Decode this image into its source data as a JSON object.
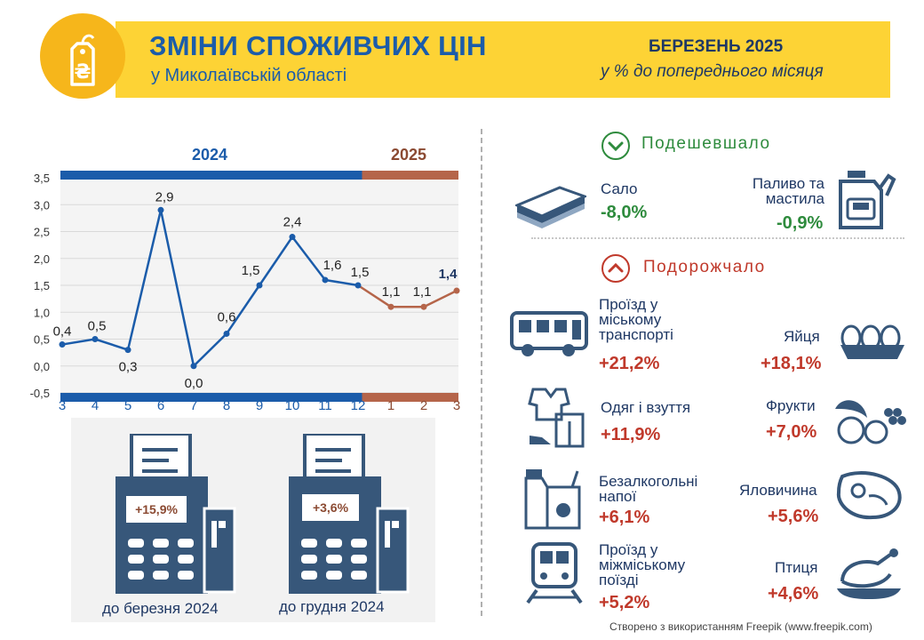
{
  "header": {
    "title": "ЗМІНИ СПОЖИВЧИХ ЦІН",
    "subtitle": "у Миколаївській області",
    "period": "БЕРЕЗЕНЬ 2025",
    "period_sub": "у % до попереднього місяця",
    "icon": "hryvnia-price-tag-icon",
    "colors": {
      "banner": "#fdd335",
      "circle": "#f6b61b",
      "primary": "#1b5caa"
    }
  },
  "chart_data": {
    "type": "line",
    "year_labels": [
      "2024",
      "2025"
    ],
    "categories": [
      "3",
      "4",
      "5",
      "6",
      "7",
      "8",
      "9",
      "10",
      "11",
      "12",
      "1",
      "2",
      "3"
    ],
    "values": [
      0.4,
      0.5,
      0.3,
      2.9,
      0.0,
      0.6,
      1.5,
      2.4,
      1.6,
      1.5,
      1.1,
      1.1,
      1.4
    ],
    "data_labels": [
      "0,4",
      "0,5",
      "0,3",
      "2,9",
      "0,0",
      "0,6",
      "1,5",
      "2,4",
      "1,6",
      "1,5",
      "1,1",
      "1,1",
      "1,4"
    ],
    "series": [
      {
        "values_index_range": [
          0,
          9
        ],
        "color": "#1b5caa"
      },
      {
        "values_index_range": [
          9,
          12
        ],
        "color": "#b5654a"
      }
    ],
    "y_ticks": [
      "-0,5",
      "0,0",
      "0,5",
      "1,0",
      "1,5",
      "2,0",
      "2,5",
      "3,0",
      "3,5"
    ],
    "ylim": [
      -0.5,
      3.5
    ],
    "grid": true
  },
  "terminals": [
    {
      "value": "+15,9%",
      "label": "до березня 2024",
      "icon": "pos-terminal-icon"
    },
    {
      "value": "+3,6%",
      "label": "до грудня 2024",
      "icon": "pos-terminal-icon"
    }
  ],
  "cheaper": {
    "title": "Подешевшало",
    "icon": "chevron-down-icon",
    "items": [
      {
        "name": "Сало",
        "value": "-8,0%",
        "icon": "lard-icon"
      },
      {
        "name_lines": [
          "Паливо та",
          "мастила"
        ],
        "value": "-0,9%",
        "icon": "fuel-canister-icon"
      }
    ]
  },
  "pricier": {
    "title": "Подорожчало",
    "icon": "chevron-up-icon",
    "items": [
      {
        "name_lines": [
          "Проїзд у",
          "міському",
          "транспорті"
        ],
        "value": "+21,2%",
        "icon": "bus-icon"
      },
      {
        "name": "Яйця",
        "value": "+18,1%",
        "icon": "eggs-icon"
      },
      {
        "name": "Одяг і взуття",
        "value": "+11,9%",
        "icon": "clothes-icon"
      },
      {
        "name": "Фрукти",
        "value": "+7,0%",
        "icon": "fruits-icon"
      },
      {
        "name_lines": [
          "Безалкогольні",
          "напої"
        ],
        "value": "+6,1%",
        "icon": "juice-icon"
      },
      {
        "name": "Яловичина",
        "value": "+5,6%",
        "icon": "beef-icon"
      },
      {
        "name_lines": [
          "Проїзд у",
          "міжміському",
          "поїзді"
        ],
        "value": "+5,2%",
        "icon": "train-icon"
      },
      {
        "name": "Птиця",
        "value": "+4,6%",
        "icon": "poultry-icon"
      }
    ]
  },
  "credit": "Створено з використанням Freepik (www.freepik.com)"
}
